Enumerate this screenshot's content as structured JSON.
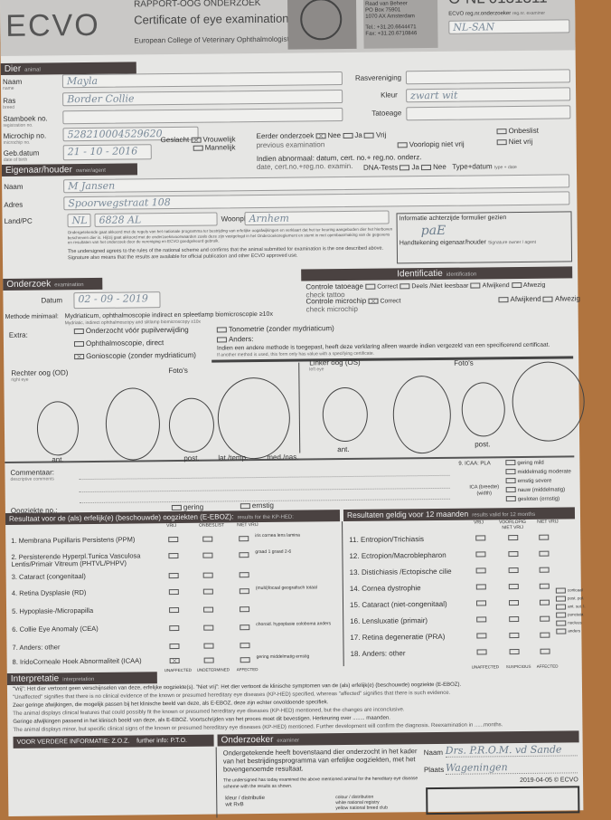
{
  "header": {
    "report_code": "RAPPORT-OOG ONDERZOEK",
    "logo": "ECVO",
    "title": "Certificate of eye examination",
    "subtitle": "European College of Veterinary Ophthalmologists",
    "address": [
      "Raad van Beheer",
      "PO Box 75901",
      "1070 AX Amsterdam",
      "Tel.: +31.20.6644471",
      "Fax: +31.20.6710846"
    ],
    "cert_no": "O-NL 0131311",
    "examiner_reg_label": "ECVO reg.nr.onderzoeker",
    "examiner_reg_sub": "reg.nr. examiner",
    "examiner_reg_value": "NL-SAN"
  },
  "animal": {
    "section": "Dier",
    "section_en": "animal",
    "name_label": "Naam",
    "name_en": "name",
    "name": "Mayla",
    "breed_label": "Ras",
    "breed_en": "breed",
    "breed": "Border Collie",
    "studbook_label": "Stamboek no.",
    "studbook_en": "registration no.",
    "studbook": "",
    "chip_label": "Microchip no.",
    "chip_en": "microchip no.",
    "chip": "528210004529620",
    "dob_label": "Geb.datum",
    "dob_en": "date of birth",
    "dob_parts": [
      "dag",
      "maand",
      "jaar"
    ],
    "dob": "21 - 10 - 2016",
    "breed_club_label": "Rasvereniging",
    "breed_club_en": "breed club",
    "colour_label": "Kleur",
    "colour_en": "colour",
    "colour": "zwart wit",
    "tattoo_label": "Tatoeage",
    "tattoo_en": "tattoo",
    "sex_label": "Geslacht",
    "sex_en": "sex",
    "female": "Vrouwelijk",
    "female_en": "female",
    "male": "Mannelijk",
    "male_en": "male",
    "prev_label": "Eerder onderzoek",
    "prev_en": "previous examination",
    "nee": "Nee",
    "nee_en": "no",
    "ja": "Ja",
    "ja_en": "yes",
    "vrij": "Vrij",
    "vrij_en": "unaffected",
    "voorlopig": "Voorlopig niet vrij",
    "voorlopig_en": "suspicious",
    "onbeslist": "Onbeslist",
    "onbeslist_en": "undetermined",
    "nietvrij": "Niet vrij",
    "nietvrij_en": "affected",
    "abnormal": "Indien abnormaal: datum, cert. no.+ reg.no. onderz.",
    "abnormal_en": "date, cert.no.+reg.no. examin.",
    "dna_label": "DNA-Tests",
    "type_date": "Type+datum",
    "type_date_en": "type + date"
  },
  "owner": {
    "section": "Eigenaar/houder",
    "section_en": "owner/agent",
    "name_label": "Naam",
    "name": "M Jansen",
    "address_label": "Adres",
    "address": "Spoorwegstraat 108",
    "country_label": "Land/PC",
    "country": "NL",
    "postcode": "6828 AL",
    "town_label": "Woonpl",
    "town": "Arnhem",
    "agreement_nl": "Ondergetekende gaat akkoord met de regels van het nationale programma ter bestrijding van erfelijke oogafwijkingen en verklaart dat het ter keuring aangeboden dier het hierboven beschreven dier is. Hij/zij gaat akkoord met de onderzoeksvoorwaarden zoals deze zijn vastgelegd in het Onderzoeksreglement en stemt in met openbaarmaking van de gegevens en resultaten van het onderzoek door de vereniging en ECVO goedgekeurd gebruik.",
    "agreement_en": "The undersigned agrees to the rules of the national scheme and confirms that the animal submitted for examination is the one described above. Signature also means that the results are available for official publication and other ECVO approved use.",
    "info_seen": "Informatie achterzijde formulier gezien",
    "signature_label": "Handtekening eigenaar/houder",
    "signature_en": "Signature owner / agent",
    "signature": "paE"
  },
  "identification": {
    "section": "Identificatie",
    "section_en": "identification",
    "tattoo_check": "Controle tatoeage",
    "tattoo_check_en": "check tattoo",
    "chip_check": "Controle microchip",
    "chip_check_en": "check microchip",
    "correct": "Correct",
    "partly": "Deels /Niet leesbaar",
    "afwijkend": "Afwijkend",
    "afwezig": "Afwezig"
  },
  "exam": {
    "section": "Onderzoek",
    "section_en": "examination",
    "date_label": "Datum",
    "date": "02 - 09 - 2019",
    "method_label": "Methode minimaal:",
    "method": "Mydriaticum, ophthalmoscopie indirect en spleetlamp biomicroscopie ≥10x",
    "method_en": "Mydriatic, indirect ophthalmoscopy and slitlamp biomicroscopy ≥10x",
    "extra_label": "Extra:",
    "extras": [
      "Onderzocht vóór pupilverwijding",
      "Ophthalmoscopie, direct",
      "Gonioscopie (zonder mydriaticum)",
      "Tonometrie (zonder mydriaticum)",
      "Anders:"
    ],
    "other_method": "Indien een andere methode is toegepast, heeft deze verklaring alleen waarde indien vergezeld van een specificerend certificaat.",
    "other_method_en": "If another method is used, this form only has value with a specifying certificate."
  },
  "eyes": {
    "right": "Rechter oog (OD)",
    "right_en": "right eye",
    "left": "Linker oog (OS)",
    "left_en": "left eye",
    "photos": "Foto's",
    "labels": [
      "ant.",
      "post.",
      "lat./temp.",
      "med./nas."
    ],
    "comment_label": "Commentaar:",
    "comment_en": "descriptive comments",
    "disease_no": "Oogziekte no.:",
    "gering": "gering",
    "ernstig": "ernstig",
    "icaa_pla": "9. ICAA: PLA",
    "pla_opts": [
      "gering mild",
      "middelmatig moderate",
      "ernstig severe"
    ],
    "ica": "ICA (breedte) (width)",
    "ica_opts": [
      "nauw (middelmatig)",
      "gesloten (ernstig)"
    ]
  },
  "results_left": {
    "title": "Resultaat voor de (als) erfelijk(e) (beschouwde) oogziekten (E-EBOZ):",
    "title_en": "results for the KP-HED:",
    "cols": [
      "VRIJ",
      "ONBESLIST",
      "NIET VRIJ"
    ],
    "footer": [
      "UNAFFECTED",
      "UNDETERMINED",
      "AFFECTED"
    ],
    "items": [
      "1. Membrana Pupillaris Persistens (PPM)",
      "2. Persisterende Hyperpl.Tunica Vasculosa Lentis/Primair Vitreum (PHTVL/PHPV)",
      "3. Cataract (congenitaal)",
      "4. Retina Dysplasie (RD)",
      "5. Hypoplasie-/Micropapilla",
      "6. Collie Eye Anomaly (CEA)",
      "7. Anders: other",
      "8. IridoCorneale Hoek Abnormaliteit (ICAA)"
    ],
    "sub": [
      "iris  cornea  lens  lamina",
      "graad 1  graad 2-6",
      "",
      "(multi)focaal  geografisch  totaal",
      "",
      "choroid. hypoplasie  coloboma  anders",
      "",
      "gering  middelmatig  ernstig"
    ]
  },
  "results_right": {
    "title": "Resultaten geldig voor 12 maanden",
    "title_en": "results valid for 12 months",
    "cols": [
      "VRIJ",
      "VOORLOPIG NIET VRIJ",
      "NIET VRIJ"
    ],
    "footer": [
      "UNAFFECTED",
      "SUSPICIOUS",
      "AFFECTED"
    ],
    "items": [
      "11. Entropion/Trichiasis",
      "12. Ectropion/Macroblepharon",
      "13. Distichiasis /Ectopische cilie",
      "14. Cornea dystrophie",
      "15. Cataract (niet-congenitaal)",
      "16. Lensluxatie (primair)",
      "17. Retina degeneratie (PRA)",
      "18. Anders: other"
    ],
    "cataract_sub": [
      "corticaal",
      "post. pol.",
      "ant. sut. l.",
      "punctata",
      "nucleus",
      "anders"
    ]
  },
  "interpretation": {
    "section": "Interpretatie",
    "section_en": "interpretation",
    "lines": [
      "\"Vrij\": Het dier vertoont geen verschijnselen van deze, erfelijke oogziekte(s). \"Niet vrij\": Het dier vertoont de klinische symptomen van de (als) erfelijk(e) (beschouwde) oogziekte (E-EBOZ).",
      "\"Unaffected\" signifies that there is no clinical evidence of the known or presumed hereditary eye diseases (KP-HED) specified, whereas \"affected\" signifies that there is such evidence.",
      "Zeer geringe afwijkingen, die mogelijk passen bij het klinische beeld van deze, als E-EBOZ, deze zijn echter onvoldoende specifiek.",
      "The animal displays clinical features that could possibly fit the known or presumed hereditary eye diseases (KP-HED) mentioned, but the changes are inconclusive.",
      "Geringe afwijkingen passend in het klinisch beeld van deze, als E-EBOZ. Voortschrijden van het proces moet dit bevestigen. Herkeuring over ........ maanden.",
      "The animal displays minor, but specific clinical signs of the known or presumed hereditary eye diseases (KP-HED) mentioned. Further development will confirm the diagnosis. Reexamination in ......months."
    ]
  },
  "footer": {
    "further": "VOOR VERDERE INFORMATIE: Z.O.Z.",
    "further_en": "further info: P.T.O.",
    "examiner": "Onderzoeker",
    "examiner_en": "examiner",
    "statement_nl": "Ondergetekende heeft bovenstaand dier onderzocht in het kader van het bestrijdingsprogramma van erfelijke oogziekten, met het bovengenoemde resultaat.",
    "statement_en": "The undersigned has today examined the above mentioned animal for the hereditary eye disease scheme with the results as shown.",
    "name_label": "Naam",
    "name": "Drs. P.R.O.M. vd Sande",
    "place_label": "Plaats",
    "place": "Wageningen",
    "version": "2019-04-05 © ECVO",
    "distribution": "kleur / distributie",
    "dist1": "wit  RvB",
    "dist_en": "colour / distribution",
    "dist_en1": "white  national registry",
    "dist_en2": "yellow  national breed club"
  }
}
